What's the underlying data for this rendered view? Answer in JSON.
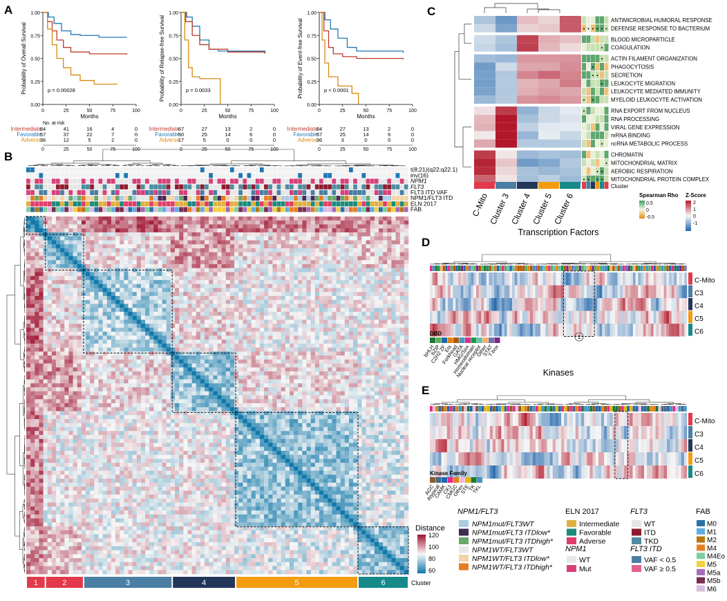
{
  "colors": {
    "intermediate": "#c0392b",
    "favorable": "#1f77b4",
    "adverse": "#d68910",
    "cmito": "#e3394b",
    "c3": "#4a7ea3",
    "c4": "#23365a",
    "c5": "#f39c12",
    "c6": "#168a8a"
  },
  "panelA": {
    "label": "A",
    "plots": [
      {
        "ylabel": "Probability of Overall Survival",
        "pval": "p = 0.00028",
        "risk_rows": [
          {
            "group": "Intermediate",
            "values": [
              "84",
              "41",
              "16",
              "4",
              "0"
            ]
          },
          {
            "group": "Favorable",
            "values": [
              "57",
              "37",
              "22",
              "7",
              "0"
            ]
          },
          {
            "group": "Adverse",
            "values": [
              "36",
              "12",
              "5",
              "2",
              "0"
            ]
          }
        ]
      },
      {
        "ylabel": "Probability of Relapse-free Survival",
        "pval": "p = 0.0033",
        "risk_rows": [
          {
            "group": "Intermediate",
            "values": [
              "67",
              "27",
              "13",
              "2",
              "0"
            ]
          },
          {
            "group": "Favorable",
            "values": [
              "50",
              "25",
              "14",
              "6",
              "0"
            ]
          },
          {
            "group": "Adverse",
            "values": [
              "17",
              "5",
              "0",
              "0",
              "0"
            ]
          }
        ]
      },
      {
        "ylabel": "Probability of Event-free Survival",
        "pval": "p < 0.0001",
        "risk_rows": [
          {
            "group": "Intermediate",
            "values": [
              "84",
              "27",
              "13",
              "2",
              "0"
            ]
          },
          {
            "group": "Favorable",
            "values": [
              "57",
              "25",
              "14",
              "6",
              "0"
            ]
          },
          {
            "group": "Adverse",
            "values": [
              "36",
              "3",
              "0",
              "0",
              "0"
            ]
          }
        ]
      }
    ],
    "xlabel": "Months",
    "yticks": [
      "1.00",
      "0.75",
      "0.50",
      "0.25",
      "0.00"
    ],
    "xticks": [
      "0",
      "25",
      "50",
      "75",
      "100"
    ],
    "risk_title": "No. at risk"
  },
  "panelB": {
    "label": "B",
    "track_labels": [
      "t(8;21)(q22;q22.1)",
      "inv(16)",
      "NPM1",
      "FLT3",
      "FLT3 ITD VAF",
      "NPM1/FLT3 ITD",
      "ELN 2017",
      "FAB"
    ],
    "cluster_labels": [
      "1",
      "2",
      "3",
      "4",
      "5",
      "6"
    ],
    "cluster_caption": "Cluster",
    "distance_title": "Distance",
    "distance_ticks": [
      "120",
      "100",
      "80",
      "60"
    ]
  },
  "panelC": {
    "label": "C",
    "terms": [
      "ANTIMICROBIAL HUMORAL RESPONSE",
      "DEFENSE RESPONSE TO BACTERIUM",
      "BLOOD MICROPARTICLE",
      "COAGULATION",
      "ACTIN FILAMENT ORGANIZATION",
      "PHAGOCYTOSIS",
      "SECRETION",
      "LEUKOCYTE MIGRATION",
      "LEUKOCYTE MEDIATED IMMUNITY",
      "MYELOID LEUKOCYTE ACTIVATION",
      "RNA EXPORT FROM NUCLEUS",
      "RNA PROCESSING",
      "VIRAL GENE EXPRESSION",
      "mRNA BINDING",
      "ncRNA METABOLIC PROCESS",
      "CHROMATIN",
      "MITOCHONDRIAL MATRIX",
      "AEROBIC RESPIRATION",
      "MITOCHONDRIAL PROTEIN COMPLEX"
    ],
    "clusters": [
      "C-Mito",
      "Cluster 3",
      "Cluster 4",
      "Cluster 5",
      "Cluster 6"
    ],
    "cluster_caption": "Cluster",
    "spearman_title": "Spearman Rho",
    "spearman_ticks": [
      "0.5",
      "0",
      "-0.5"
    ],
    "zscore_title": "Z-Score",
    "zscore_ticks": [
      "2",
      "1",
      "0",
      "-1"
    ]
  },
  "panelD": {
    "label": "D",
    "title": "Transcription Factors",
    "rows": [
      "C-Mito",
      "C3",
      "C4",
      "C5",
      "C6"
    ],
    "dbd_title": "DBD",
    "dbd_labels": [
      "bHLH",
      "bZIP",
      "C2H2 ZF",
      "Ets",
      "Forkhead",
      "GATA",
      "HMG/Sox",
      "Homeodomain",
      "Nuclear receptor",
      "Other",
      "STAT",
      "T-box"
    ],
    "marker": "1"
  },
  "panelE": {
    "label": "E",
    "title": "Kinases",
    "rows": [
      "C-Mito",
      "C3",
      "C4",
      "C5",
      "C6"
    ],
    "family_title": "Kinase Family",
    "family_labels": [
      "AGC",
      "Atypical",
      "CAMK",
      "CK1",
      "CMGC",
      "Other",
      "STE",
      "TK",
      "TKL"
    ]
  },
  "legend": {
    "npm1flt3_title": "NPM1/FLT3",
    "npm1flt3_items": [
      "NPM1mut/FLT3WT",
      "NPM1mut/FLT3 ITDlow*",
      "NPM1mut/FLT3 ITDhigh*",
      "NPM1WT/FLT3WT",
      "NPM1WT/FLT3 ITDlow*",
      "NPM1WT/FLT3 ITDhigh*"
    ],
    "eln_title": "ELN 2017",
    "eln_items": [
      "Intermediate",
      "Favorable",
      "Adverse"
    ],
    "npm1_title": "NPM1",
    "npm1_items": [
      "WT",
      "Mut"
    ],
    "flt3_title": "FLT3",
    "flt3_items": [
      "WT",
      "ITD",
      "TKD"
    ],
    "flt3itd_title": "FLT3 ITD",
    "flt3itd_items": [
      "VAF < 0.5",
      "VAF ≥ 0.5"
    ],
    "fab_title": "FAB",
    "fab_items": [
      "M0",
      "M1",
      "M2",
      "M4",
      "M4Eo",
      "M5",
      "M5a",
      "M5b",
      "M6"
    ]
  }
}
